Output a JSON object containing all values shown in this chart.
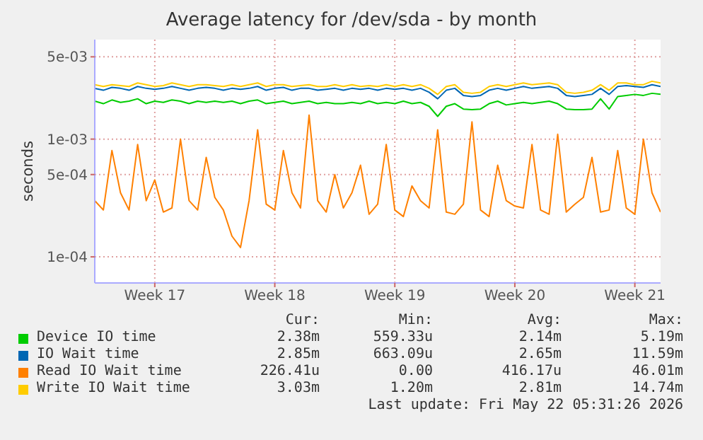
{
  "chart_data": {
    "type": "line",
    "title": "Average latency for /dev/sda - by month",
    "ylabel": "seconds",
    "log": "y",
    "grid": true,
    "legend": "bottom",
    "marker": "none",
    "line_style": "solid",
    "categories": [
      null,
      null,
      null,
      null,
      null,
      null,
      null,
      "Week 17",
      null,
      null,
      null,
      null,
      null,
      null,
      null,
      null,
      null,
      null,
      null,
      null,
      null,
      "Week 18",
      null,
      null,
      null,
      null,
      null,
      null,
      null,
      null,
      null,
      null,
      null,
      null,
      null,
      "Week 19",
      null,
      null,
      null,
      null,
      null,
      null,
      null,
      null,
      null,
      null,
      null,
      null,
      null,
      "Week 20",
      null,
      null,
      null,
      null,
      null,
      null,
      null,
      null,
      null,
      null,
      null,
      null,
      null,
      "Week 21",
      null,
      null,
      null
    ],
    "ylim": [
      6e-05,
      0.007
    ],
    "yticks": [
      {
        "value": 0.005,
        "label": "5e-03"
      },
      {
        "value": 0.001,
        "label": "1e-03"
      },
      {
        "value": 0.0005,
        "label": "5e-04"
      },
      {
        "value": 0.0001,
        "label": "1e-04"
      }
    ],
    "series": [
      {
        "name": "Device IO time",
        "color": "#00cc00",
        "values": [
          0.0021,
          0.002,
          0.00215,
          0.00205,
          0.0021,
          0.0022,
          0.002,
          0.0021,
          0.00205,
          0.00215,
          0.0021,
          0.002,
          0.0021,
          0.00205,
          0.0021,
          0.00205,
          0.0021,
          0.002,
          0.0021,
          0.00215,
          0.002,
          0.00205,
          0.0021,
          0.002,
          0.00205,
          0.0021,
          0.002,
          0.00205,
          0.002,
          0.002,
          0.00205,
          0.002,
          0.0021,
          0.002,
          0.00205,
          0.002,
          0.0021,
          0.002,
          0.00205,
          0.0019,
          0.00156,
          0.0019,
          0.002,
          0.0018,
          0.00178,
          0.0018,
          0.002,
          0.0021,
          0.00195,
          0.002,
          0.00205,
          0.002,
          0.00205,
          0.0021,
          0.002,
          0.0018,
          0.00178,
          0.00178,
          0.0018,
          0.0022,
          0.0018,
          0.0023,
          0.00235,
          0.0024,
          0.00235,
          0.00245,
          0.0024
        ]
      },
      {
        "name": "IO Wait time",
        "color": "#0066b3",
        "values": [
          0.0027,
          0.0026,
          0.00275,
          0.0027,
          0.0026,
          0.0028,
          0.0027,
          0.00265,
          0.0027,
          0.0028,
          0.0027,
          0.0026,
          0.0027,
          0.00275,
          0.0027,
          0.0026,
          0.0027,
          0.00265,
          0.0027,
          0.0028,
          0.0026,
          0.0027,
          0.00275,
          0.0026,
          0.0027,
          0.0027,
          0.0026,
          0.00265,
          0.0027,
          0.0026,
          0.0027,
          0.00265,
          0.0027,
          0.0026,
          0.0027,
          0.00265,
          0.0027,
          0.0026,
          0.0027,
          0.0025,
          0.0022,
          0.0026,
          0.0027,
          0.00235,
          0.0023,
          0.00235,
          0.0026,
          0.0027,
          0.0026,
          0.0027,
          0.0028,
          0.0027,
          0.00275,
          0.0028,
          0.0027,
          0.00235,
          0.0023,
          0.00235,
          0.0024,
          0.0027,
          0.0024,
          0.0028,
          0.00285,
          0.0028,
          0.00275,
          0.0029,
          0.0028
        ]
      },
      {
        "name": "Read IO Wait time",
        "color": "#ff8000",
        "values": [
          0.0003,
          0.00025,
          0.0008,
          0.00035,
          0.00025,
          0.0009,
          0.0003,
          0.00045,
          0.00024,
          0.00026,
          0.001,
          0.0003,
          0.00025,
          0.0007,
          0.00032,
          0.00025,
          0.00015,
          0.00012,
          0.0003,
          0.0012,
          0.00028,
          0.00025,
          0.0008,
          0.00035,
          0.00026,
          0.0016,
          0.0003,
          0.00024,
          0.0005,
          0.00026,
          0.00035,
          0.0006,
          0.00023,
          0.00028,
          0.0009,
          0.00025,
          0.00022,
          0.0004,
          0.0003,
          0.00026,
          0.0012,
          0.00024,
          0.00023,
          0.00028,
          0.0014,
          0.00025,
          0.00022,
          0.0006,
          0.0003,
          0.00027,
          0.00026,
          0.0009,
          0.00025,
          0.00023,
          0.0011,
          0.00024,
          0.00028,
          0.00032,
          0.0007,
          0.00024,
          0.00025,
          0.0008,
          0.00026,
          0.00023,
          0.001,
          0.00035,
          0.00024
        ]
      },
      {
        "name": "Write IO Wait time",
        "color": "#ffcc00",
        "values": [
          0.0029,
          0.0028,
          0.0029,
          0.00285,
          0.0028,
          0.003,
          0.0029,
          0.0028,
          0.00285,
          0.003,
          0.0029,
          0.0028,
          0.0029,
          0.0029,
          0.00285,
          0.0028,
          0.0029,
          0.0028,
          0.0029,
          0.003,
          0.0028,
          0.0029,
          0.0029,
          0.0028,
          0.00285,
          0.0029,
          0.0028,
          0.0028,
          0.0029,
          0.0028,
          0.0029,
          0.0028,
          0.00285,
          0.0028,
          0.0029,
          0.0028,
          0.0029,
          0.0028,
          0.0029,
          0.0027,
          0.0024,
          0.0028,
          0.0029,
          0.0025,
          0.00245,
          0.0025,
          0.0028,
          0.0029,
          0.0028,
          0.0029,
          0.003,
          0.0029,
          0.00295,
          0.003,
          0.0029,
          0.0025,
          0.00245,
          0.0025,
          0.0026,
          0.0029,
          0.0026,
          0.003,
          0.003,
          0.0029,
          0.0029,
          0.0031,
          0.003
        ]
      }
    ],
    "annotations": [
      "Cur:",
      "Min:",
      "Avg:",
      "Max:",
      "2.38m",
      "559.33u",
      "2.14m",
      "5.19m",
      "2.85m",
      "663.09u",
      "2.65m",
      "11.59m",
      "226.41u",
      "0.00",
      "416.17u",
      "46.01m",
      "3.03m",
      "1.20m",
      "2.81m",
      "14.74m",
      "Last update: Fri May 22 05:31:26 2026"
    ]
  }
}
